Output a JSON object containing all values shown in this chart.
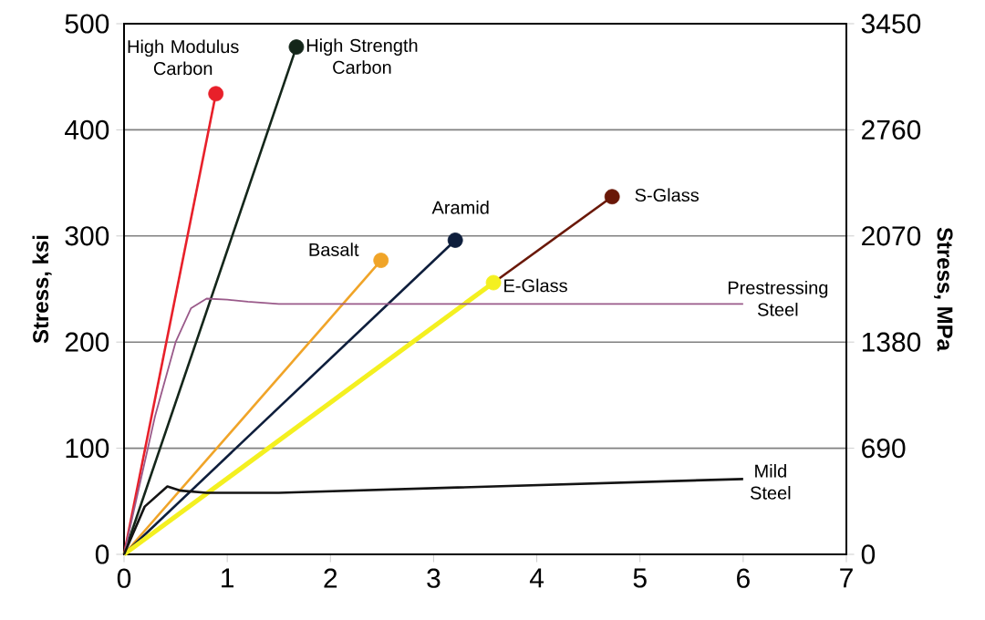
{
  "chart_data": {
    "type": "line",
    "ylabel": "Stress, ksi",
    "y2label": "Stress, MPa",
    "xlim": [
      0,
      7
    ],
    "xticks": [
      0,
      1,
      2,
      3,
      4,
      5,
      6,
      7
    ],
    "ylim": [
      0,
      500
    ],
    "yticks": [
      0,
      100,
      200,
      300,
      400,
      500
    ],
    "y2lim": [
      0,
      3450
    ],
    "y2ticks": [
      0,
      690,
      1380,
      2070,
      2760,
      3450
    ],
    "grid": "y",
    "line_style": "solid",
    "series": [
      {
        "name": "High Modulus Carbon",
        "color": "#e8202a",
        "marker": "circle",
        "x": [
          0,
          0.89
        ],
        "values": [
          0,
          434
        ]
      },
      {
        "name": "High Strength Carbon",
        "color": "#14261a",
        "marker": "circle",
        "x": [
          0,
          1.67
        ],
        "values": [
          0,
          478
        ]
      },
      {
        "name": "Basalt",
        "color": "#f0a428",
        "marker": "circle",
        "x": [
          0,
          2.49
        ],
        "values": [
          0,
          277
        ]
      },
      {
        "name": "Aramid",
        "color": "#0e1e3c",
        "marker": "circle",
        "x": [
          0,
          3.21
        ],
        "values": [
          0,
          296
        ]
      },
      {
        "name": "S-Glass",
        "color": "#6a1808",
        "marker": "circle",
        "x": [
          3.58,
          4.73
        ],
        "values": [
          256,
          337
        ]
      },
      {
        "name": "E-Glass",
        "color": "#f4f020",
        "marker": "circle",
        "x": [
          0,
          3.58
        ],
        "values": [
          0,
          256
        ]
      },
      {
        "name": "Prestressing Steel",
        "color": "#9a5a8a",
        "marker": "none",
        "x": [
          0,
          0.3,
          0.5,
          0.65,
          0.8,
          1.0,
          1.2,
          1.5,
          3,
          6
        ],
        "values": [
          0,
          130,
          200,
          232,
          241,
          240,
          238,
          236,
          236,
          236
        ]
      },
      {
        "name": "Mild Steel",
        "color": "#141414",
        "marker": "none",
        "x": [
          0,
          0.2,
          0.42,
          0.55,
          0.8,
          1.5,
          6
        ],
        "values": [
          0,
          45,
          64,
          60,
          58,
          58,
          71
        ]
      }
    ]
  }
}
